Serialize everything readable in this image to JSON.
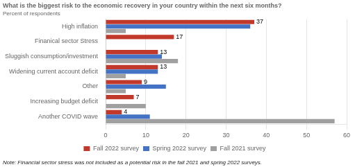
{
  "chart_data": {
    "type": "bar",
    "orientation": "horizontal",
    "title": "What is the biggest risk to the economic recovery in your country within the next six months?",
    "subtitle": "Percent of respondents",
    "note": "Note: Financial sector stress was not included as a potential risk in the fall 2021 and spring 2022 surveys.",
    "categories": [
      "High inflation",
      "Finanical sector Stress",
      "Sluggish consumption/investment",
      "Widening current account deficit",
      "Other",
      "Increasing budget deficit",
      "Another COVID wave"
    ],
    "series": [
      {
        "name": "Fall 2022 survey",
        "color": "#c0392b",
        "values": [
          37,
          17,
          13,
          13,
          9,
          7,
          4
        ],
        "data_labels": true
      },
      {
        "name": "Spring 2022 survey",
        "color": "#4472c4",
        "values": [
          36,
          0,
          14,
          13,
          15,
          0,
          11
        ]
      },
      {
        "name": "Fall 2021 survey",
        "color": "#a0a0a0",
        "values": [
          5,
          0,
          18,
          5,
          5,
          10,
          57
        ]
      }
    ],
    "xlim": [
      0,
      60
    ],
    "xticks": [
      0,
      10,
      20,
      30,
      40,
      50,
      60
    ],
    "grid": true,
    "legend": "bottom"
  }
}
